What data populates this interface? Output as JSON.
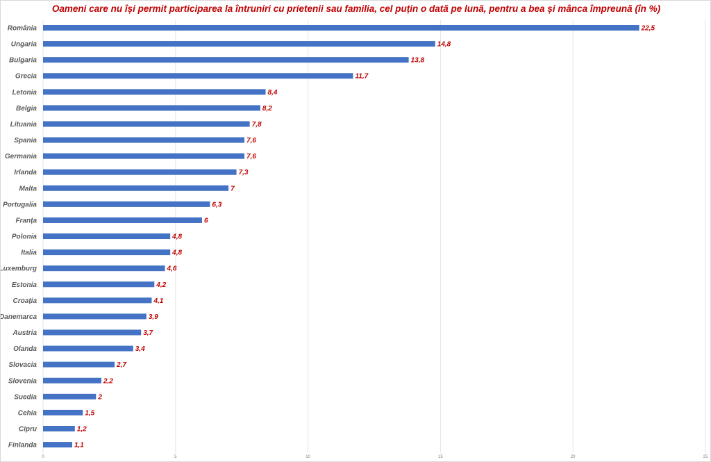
{
  "chart_data": {
    "type": "bar",
    "orientation": "horizontal",
    "title": "Oameni care nu își permit participarea  la întruniri cu prietenii sau familia, cel puțin o dată pe lună, pentru a bea și mânca împreună (în %)",
    "categories": [
      "România",
      "Ungaria",
      "Bulgaria",
      "Grecia",
      "Letonia",
      "Belgia",
      "Lituania",
      "Spania",
      "Germania",
      "Irlanda",
      "Malta",
      "Portugalia",
      "Franța",
      "Polonia",
      "Italia",
      "Luxemburg",
      "Estonia",
      "Croația",
      "Danemarca",
      "Austria",
      "Olanda",
      "Slovacia",
      "Slovenia",
      "Suedia",
      "Cehia",
      "Cipru",
      "Finlanda"
    ],
    "values": [
      22.5,
      14.8,
      13.8,
      11.7,
      8.4,
      8.2,
      7.8,
      7.6,
      7.6,
      7.3,
      7,
      6.3,
      6,
      4.8,
      4.8,
      4.6,
      4.2,
      4.1,
      3.9,
      3.7,
      3.4,
      2.7,
      2.2,
      2,
      1.5,
      1.2,
      1.1
    ],
    "value_labels": [
      "22,5",
      "14,8",
      "13,8",
      "11,7",
      "8,4",
      "8,2",
      "7,8",
      "7,6",
      "7,6",
      "7,3",
      "7",
      "6,3",
      "6",
      "4,8",
      "4,8",
      "4,6",
      "4,2",
      "4,1",
      "3,9",
      "3,7",
      "3,4",
      "2,7",
      "2,2",
      "2",
      "1,5",
      "1,2",
      "1,1"
    ],
    "xlim": [
      0,
      25
    ],
    "xticks": [
      0,
      5,
      10,
      15,
      20,
      25
    ],
    "grid": "vertical",
    "bar_color": "#4472c4",
    "value_label_color": "#c00000",
    "category_label_color": "#595959",
    "title_color": "#c00000"
  }
}
